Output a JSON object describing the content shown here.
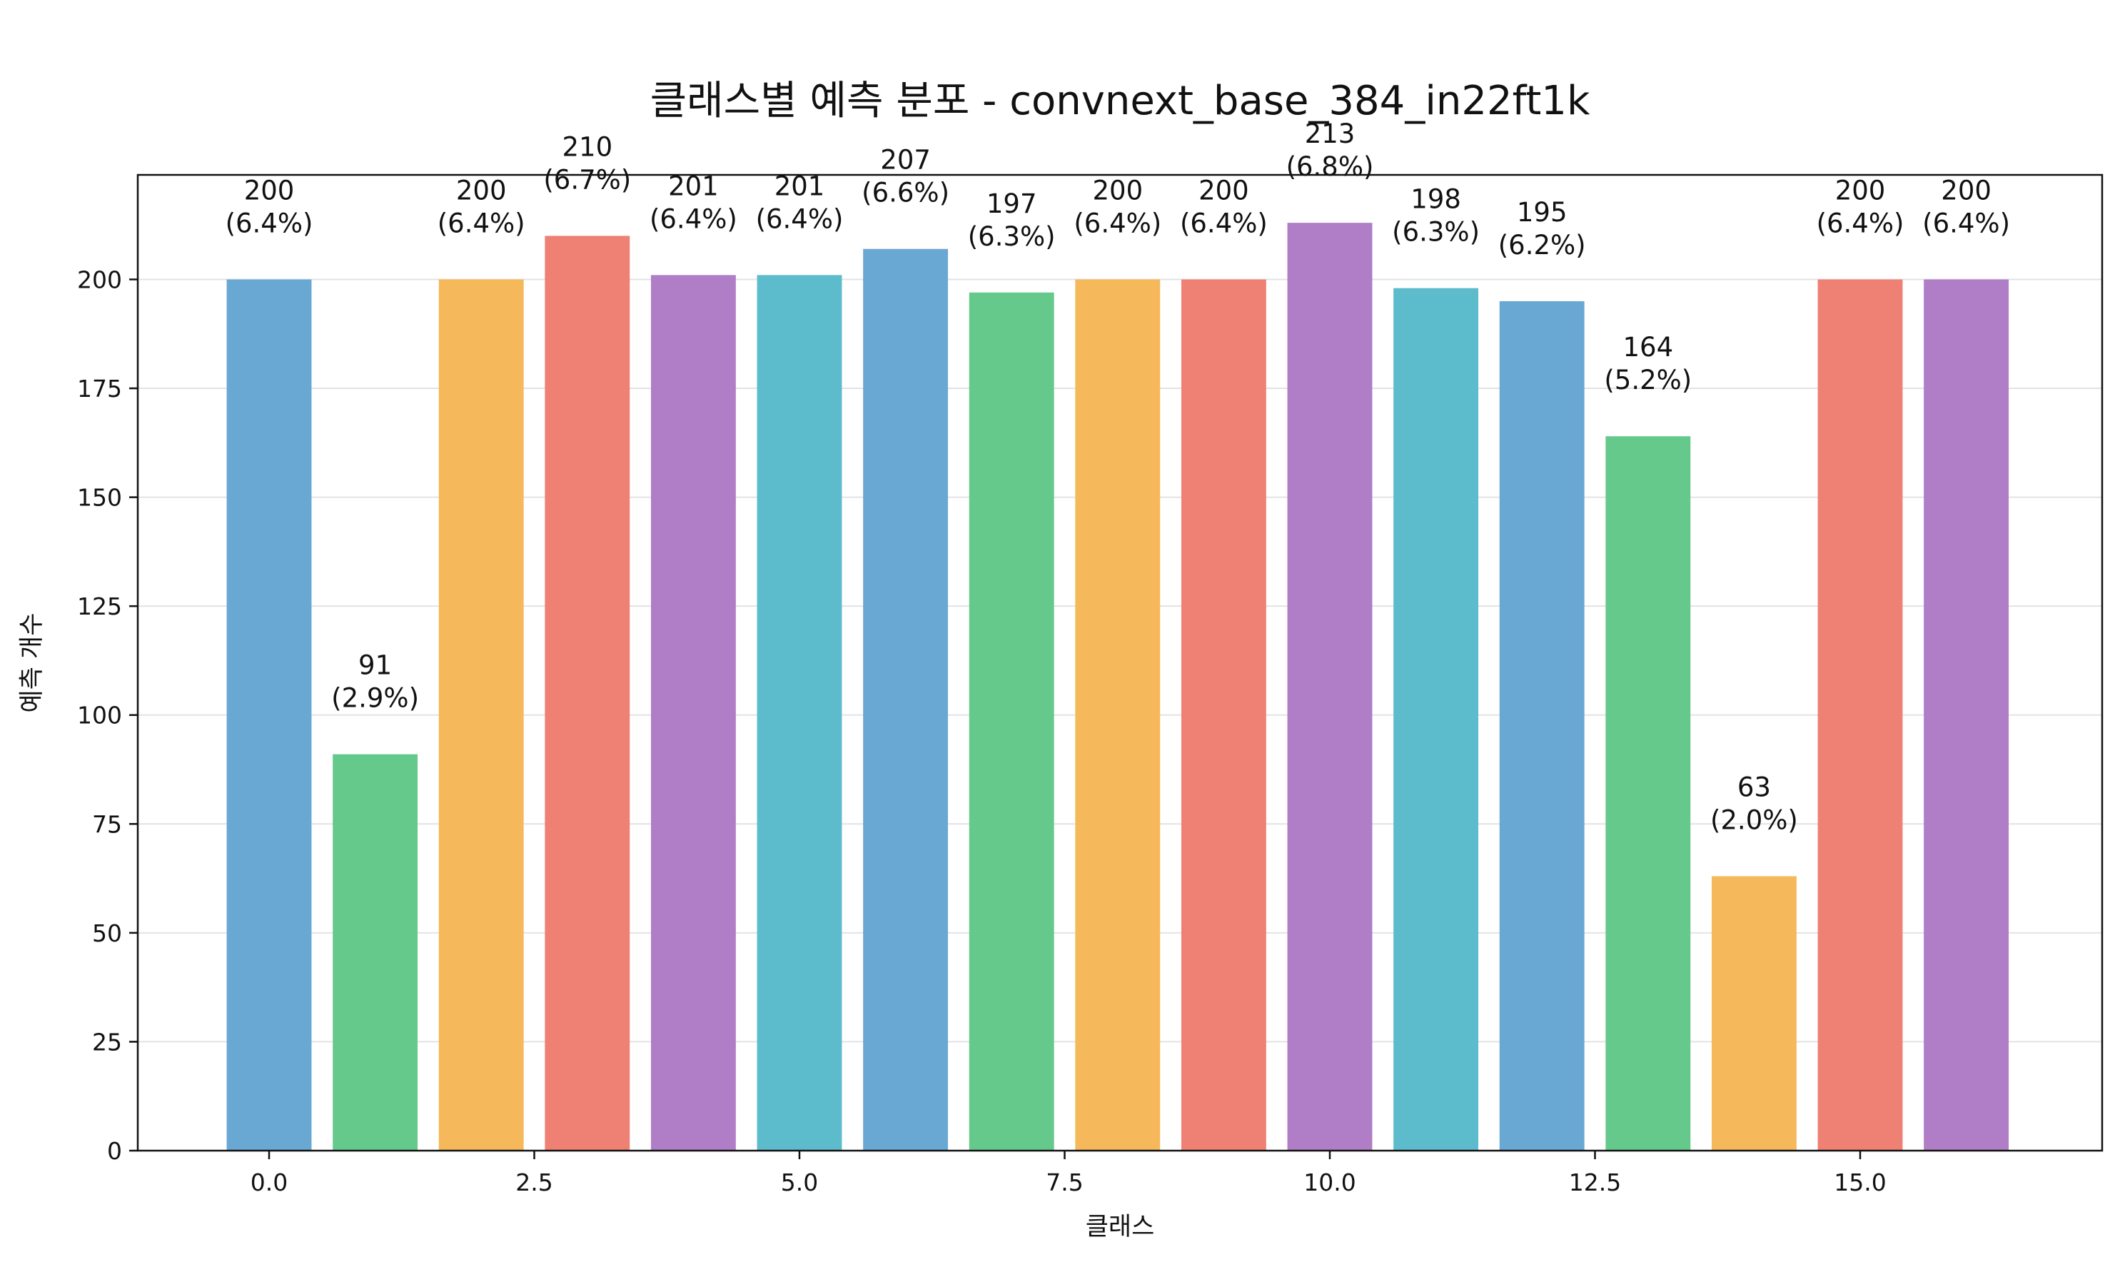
{
  "chart_data": {
    "type": "bar",
    "title": "클래스별 예측 분포 - convnext_base_384_in22ft1k",
    "xlabel": "클래스",
    "ylabel": "예측 개수",
    "x": [
      0,
      1,
      2,
      3,
      4,
      5,
      6,
      7,
      8,
      9,
      10,
      11,
      12,
      13,
      14,
      15,
      16
    ],
    "values": [
      200,
      91,
      200,
      210,
      201,
      201,
      207,
      197,
      200,
      200,
      213,
      198,
      195,
      164,
      63,
      200,
      200
    ],
    "value_labels": [
      "200",
      "91",
      "200",
      "210",
      "201",
      "201",
      "207",
      "197",
      "200",
      "200",
      "213",
      "198",
      "195",
      "164",
      "63",
      "200",
      "200"
    ],
    "percent_labels": [
      "(6.4%)",
      "(2.9%)",
      "(6.4%)",
      "(6.7%)",
      "(6.4%)",
      "(6.4%)",
      "(6.6%)",
      "(6.3%)",
      "(6.4%)",
      "(6.4%)",
      "(6.8%)",
      "(6.3%)",
      "(6.2%)",
      "(5.2%)",
      "(2.0%)",
      "(6.4%)",
      "(6.4%)"
    ],
    "colors": [
      "#6aa8d4",
      "#66c98c",
      "#f5b85a",
      "#ee8074",
      "#af7ec6",
      "#5dbccb",
      "#6aa8d4",
      "#66c98c",
      "#f5b85a",
      "#ee8074",
      "#af7ec6",
      "#5dbccb",
      "#6aa8d4",
      "#66c98c",
      "#f5b85a",
      "#ee8074",
      "#af7ec6"
    ],
    "xlim": [
      -0.5,
      17.5
    ],
    "ylim": [
      0,
      224
    ],
    "xticks": [
      0,
      2.5,
      5,
      7.5,
      10,
      12.5,
      15
    ],
    "xtick_labels": [
      "0.0",
      "2.5",
      "5.0",
      "7.5",
      "10.0",
      "12.5",
      "15.0"
    ],
    "yticks": [
      0,
      25,
      50,
      75,
      100,
      125,
      150,
      175,
      200
    ],
    "ytick_labels": [
      "0",
      "25",
      "50",
      "75",
      "100",
      "125",
      "150",
      "175",
      "200"
    ],
    "grid": "y",
    "legend": "none"
  }
}
